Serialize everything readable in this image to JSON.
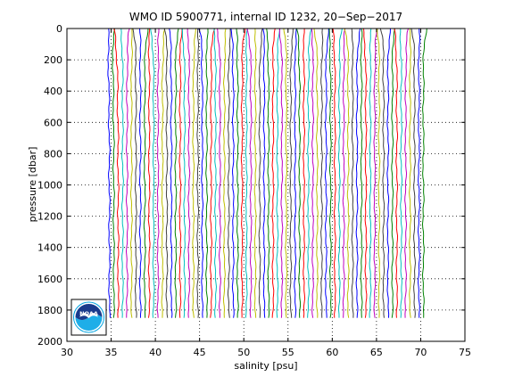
{
  "window": {
    "background": "#ffffff"
  },
  "chart_data": {
    "type": "line",
    "title": "WMO ID 5900771, internal ID 1232, 20−Sep−2017",
    "xlabel": "salinity [psu]",
    "ylabel": "pressure [dbar]",
    "xlim": [
      30,
      75
    ],
    "ylim": [
      0,
      2000
    ],
    "y_reversed": true,
    "grid": true,
    "grid_style": "dotted",
    "xticks": [
      "30",
      "35",
      "40",
      "45",
      "50",
      "55",
      "60",
      "65",
      "70",
      "75"
    ],
    "yticks": [
      "0",
      "200",
      "400",
      "600",
      "800",
      "1000",
      "1200",
      "1400",
      "1600",
      "1800",
      "2000"
    ],
    "profile_count": 72,
    "profile_offset_psu": 0.5,
    "first_profile_base_salinity": 34.8,
    "max_pressure": 1850,
    "series_colors": [
      "#0000ff",
      "#008000",
      "#ff0000",
      "#00bfbf",
      "#bf00bf",
      "#bfbf00",
      "#404040"
    ],
    "logo": {
      "name": "noaa-logo",
      "text": "NOAA"
    }
  }
}
